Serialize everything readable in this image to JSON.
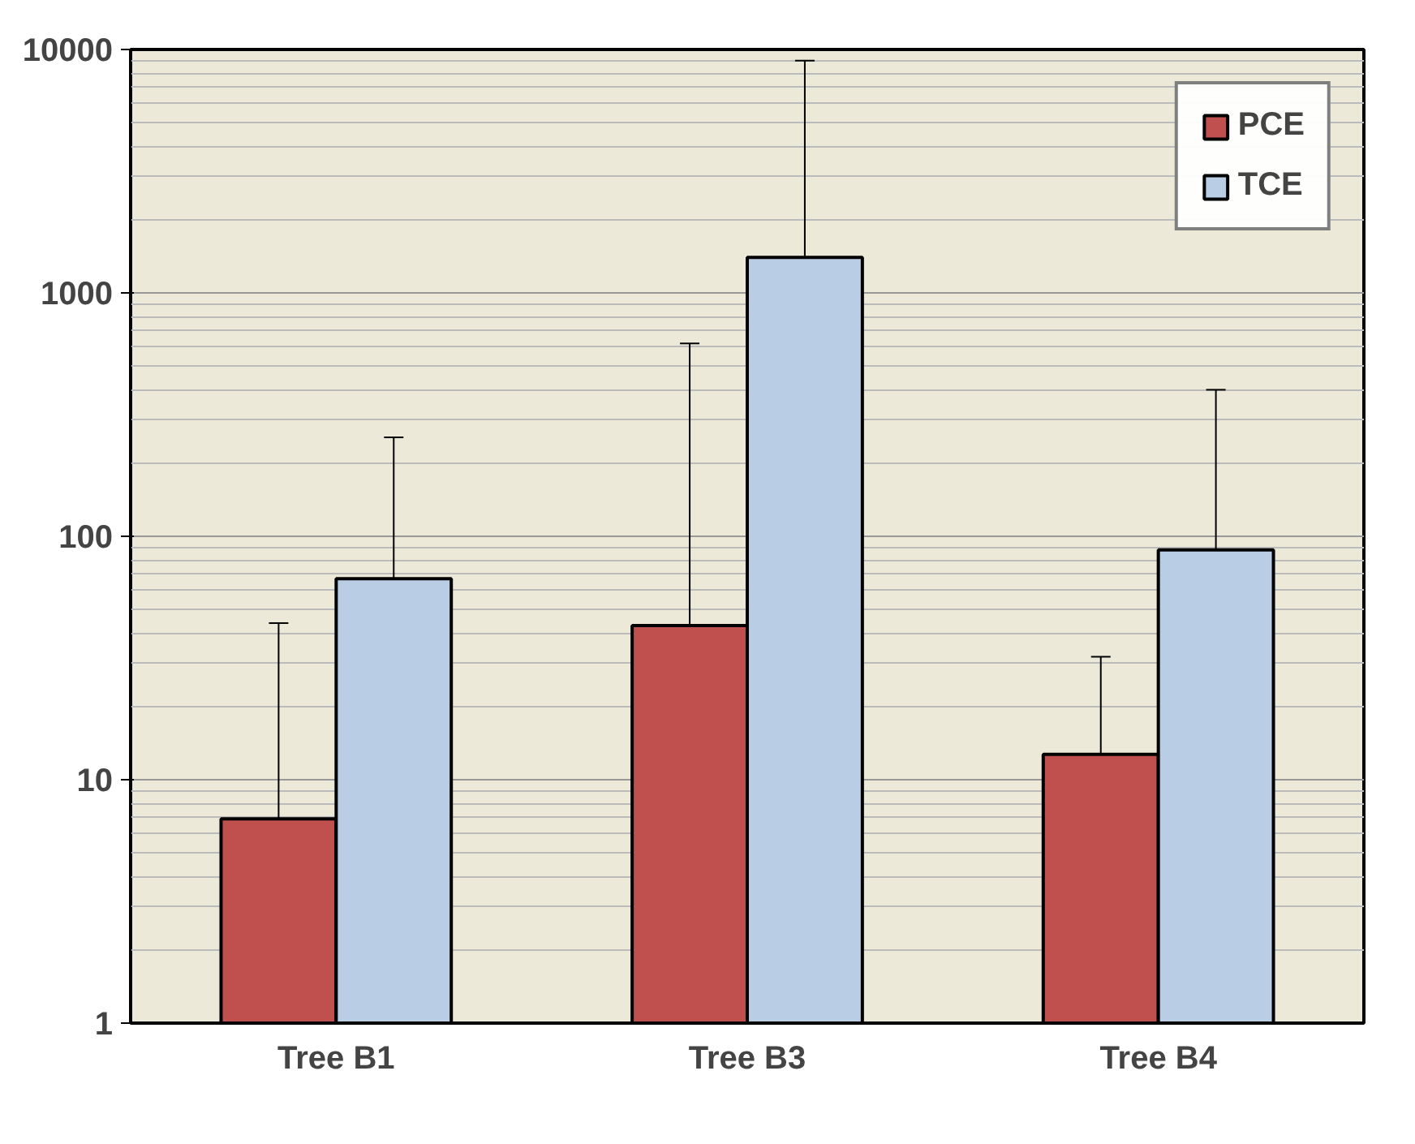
{
  "chart_data": {
    "type": "bar",
    "categories": [
      "Tree B1",
      "Tree B3",
      "Tree B4"
    ],
    "series": [
      {
        "name": "PCE",
        "color": "#c0504d",
        "values": [
          6.9,
          43,
          12.7
        ],
        "errors": [
          [
            6.9,
            44
          ],
          [
            43,
            620
          ],
          [
            12.7,
            32
          ]
        ]
      },
      {
        "name": "TCE",
        "color": "#b9cde5",
        "values": [
          67,
          1400,
          88
        ],
        "errors": [
          [
            67,
            255
          ],
          [
            1400,
            9000
          ],
          [
            88,
            400
          ]
        ]
      }
    ],
    "log": "y",
    "ylim": [
      1,
      10000
    ],
    "yticks": [
      1,
      10,
      100,
      1000,
      10000
    ],
    "grid": "y",
    "legend": "top right"
  }
}
